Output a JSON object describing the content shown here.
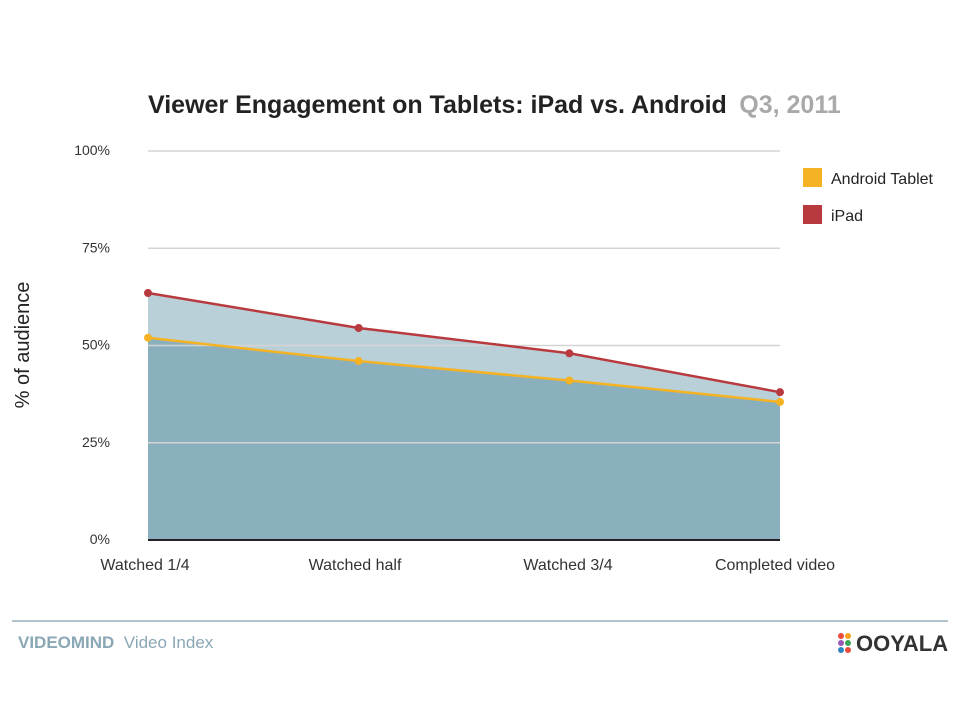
{
  "chart_data": {
    "type": "area",
    "title": "Viewer Engagement on Tablets: iPad vs. Android",
    "title_accent": "Q3, 2011",
    "ylabel": "% of audience",
    "xlabel": "",
    "categories": [
      "Watched 1/4",
      "Watched half",
      "Watched 3/4",
      "Completed video"
    ],
    "ylim": [
      0,
      100
    ],
    "yticks": [
      0,
      25,
      50,
      75,
      100
    ],
    "ytick_labels": [
      "0%",
      "25%",
      "50%",
      "75%",
      "100%"
    ],
    "grid": true,
    "legend_position": "top-right",
    "series": [
      {
        "name": "Android Tablet",
        "values": [
          52,
          46,
          41,
          35.5
        ],
        "color": "#f5b324"
      },
      {
        "name": "iPad",
        "values": [
          63.5,
          54.5,
          48,
          38
        ],
        "color": "#b83a3f"
      }
    ],
    "area_color_lower": "#8aafbd",
    "area_color_upper": "#b9d0d8"
  },
  "footer": {
    "brand_bold": "VIDEOMIND",
    "brand_regular": "Video Index",
    "logo_text": "OOYALA"
  }
}
